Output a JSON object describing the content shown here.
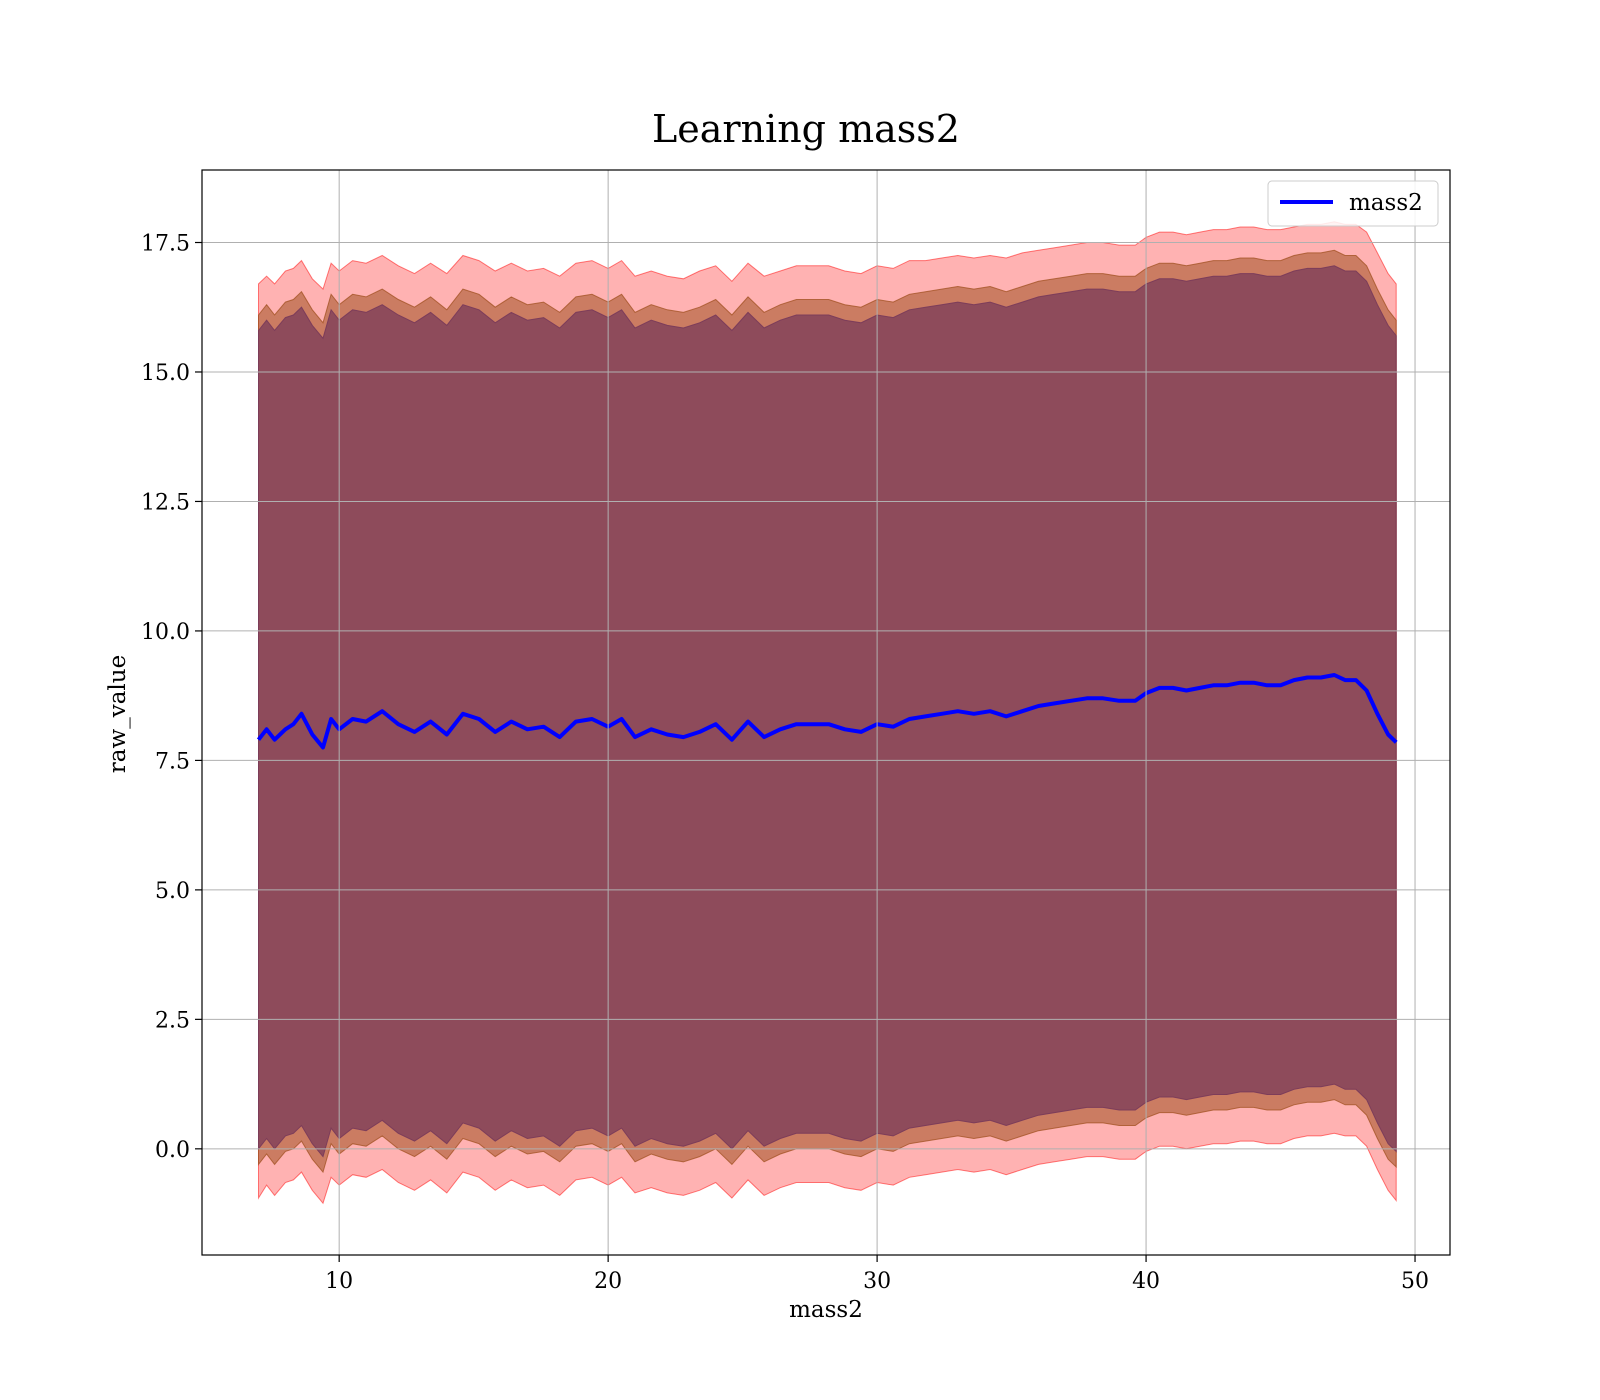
{
  "chart_data": {
    "type": "area",
    "title": "Learning mass2",
    "xlabel": "mass2",
    "ylabel": "raw_value",
    "xlim": [
      4.9,
      51.3
    ],
    "ylim": [
      -2.05,
      18.9
    ],
    "xticks": [
      10,
      20,
      30,
      40,
      50
    ],
    "xtick_labels": [
      "10",
      "20",
      "30",
      "40",
      "50"
    ],
    "yticks": [
      0.0,
      2.5,
      5.0,
      7.5,
      10.0,
      12.5,
      15.0,
      17.5
    ],
    "ytick_labels": [
      "0.0",
      "2.5",
      "5.0",
      "7.5",
      "10.0",
      "12.5",
      "15.0",
      "17.5"
    ],
    "grid": true,
    "legend_position": "top-right",
    "series": [
      {
        "name": "mass2",
        "color": "#0000ff",
        "x": [
          7.0,
          7.3,
          7.6,
          8.0,
          8.3,
          8.6,
          9.0,
          9.4,
          9.7,
          10.0,
          10.5,
          11.0,
          11.6,
          12.2,
          12.8,
          13.4,
          14.0,
          14.6,
          15.2,
          15.8,
          16.4,
          17.0,
          17.6,
          18.2,
          18.8,
          19.4,
          20.0,
          20.5,
          21.0,
          21.6,
          22.2,
          22.8,
          23.4,
          24.0,
          24.6,
          25.2,
          25.8,
          26.4,
          27.0,
          27.6,
          28.2,
          28.8,
          29.4,
          30.0,
          30.6,
          31.2,
          31.8,
          32.4,
          33.0,
          33.6,
          34.2,
          34.8,
          35.4,
          36.0,
          36.6,
          37.2,
          37.8,
          38.4,
          39.0,
          39.6,
          40.0,
          40.5,
          41.0,
          41.5,
          42.0,
          42.5,
          43.0,
          43.5,
          44.0,
          44.5,
          45.0,
          45.5,
          46.0,
          46.5,
          47.0,
          47.4,
          47.8,
          48.2,
          48.6,
          49.0,
          49.3
        ],
        "y": [
          7.9,
          8.1,
          7.9,
          8.1,
          8.2,
          8.4,
          8.0,
          7.75,
          8.3,
          8.1,
          8.3,
          8.25,
          8.45,
          8.2,
          8.05,
          8.25,
          8.0,
          8.4,
          8.3,
          8.05,
          8.25,
          8.1,
          8.15,
          7.95,
          8.25,
          8.3,
          8.15,
          8.3,
          7.95,
          8.1,
          8.0,
          7.95,
          8.05,
          8.2,
          7.9,
          8.25,
          7.95,
          8.1,
          8.2,
          8.2,
          8.2,
          8.1,
          8.05,
          8.2,
          8.15,
          8.3,
          8.35,
          8.4,
          8.45,
          8.4,
          8.45,
          8.35,
          8.45,
          8.55,
          8.6,
          8.65,
          8.7,
          8.7,
          8.65,
          8.65,
          8.8,
          8.9,
          8.9,
          8.85,
          8.9,
          8.95,
          8.95,
          9.0,
          9.0,
          8.95,
          8.95,
          9.05,
          9.1,
          9.1,
          9.15,
          9.05,
          9.05,
          8.85,
          8.4,
          8.0,
          7.85
        ]
      }
    ],
    "bands": [
      {
        "color": "#ff0000",
        "opacity": 0.3,
        "upper": [
          16.7,
          16.85,
          16.7,
          16.95,
          17.0,
          17.15,
          16.8,
          16.6,
          17.1,
          16.95,
          17.15,
          17.1,
          17.25,
          17.05,
          16.9,
          17.1,
          16.9,
          17.25,
          17.15,
          16.95,
          17.1,
          16.95,
          17.0,
          16.85,
          17.1,
          17.15,
          17.0,
          17.15,
          16.85,
          16.95,
          16.85,
          16.8,
          16.95,
          17.05,
          16.75,
          17.1,
          16.85,
          16.95,
          17.05,
          17.05,
          17.05,
          16.95,
          16.9,
          17.05,
          17.0,
          17.15,
          17.15,
          17.2,
          17.25,
          17.2,
          17.25,
          17.2,
          17.3,
          17.35,
          17.4,
          17.45,
          17.5,
          17.5,
          17.45,
          17.45,
          17.6,
          17.7,
          17.7,
          17.65,
          17.7,
          17.75,
          17.75,
          17.8,
          17.8,
          17.75,
          17.75,
          17.8,
          17.85,
          17.85,
          17.9,
          17.85,
          17.85,
          17.7,
          17.3,
          16.9,
          16.7
        ],
        "lower": [
          -0.95,
          -0.7,
          -0.9,
          -0.65,
          -0.6,
          -0.45,
          -0.8,
          -1.05,
          -0.55,
          -0.7,
          -0.5,
          -0.55,
          -0.4,
          -0.65,
          -0.8,
          -0.6,
          -0.85,
          -0.45,
          -0.55,
          -0.8,
          -0.6,
          -0.75,
          -0.7,
          -0.9,
          -0.6,
          -0.55,
          -0.7,
          -0.55,
          -0.85,
          -0.75,
          -0.85,
          -0.9,
          -0.8,
          -0.65,
          -0.95,
          -0.6,
          -0.9,
          -0.75,
          -0.65,
          -0.65,
          -0.65,
          -0.75,
          -0.8,
          -0.65,
          -0.7,
          -0.55,
          -0.5,
          -0.45,
          -0.4,
          -0.45,
          -0.4,
          -0.5,
          -0.4,
          -0.3,
          -0.25,
          -0.2,
          -0.15,
          -0.15,
          -0.2,
          -0.2,
          -0.05,
          0.05,
          0.05,
          0.0,
          0.05,
          0.1,
          0.1,
          0.15,
          0.15,
          0.1,
          0.1,
          0.2,
          0.25,
          0.25,
          0.3,
          0.25,
          0.25,
          0.05,
          -0.4,
          -0.8,
          -1.0
        ]
      },
      {
        "color": "#a05020",
        "opacity": 0.55,
        "upper": [
          16.1,
          16.3,
          16.1,
          16.35,
          16.4,
          16.55,
          16.2,
          15.95,
          16.5,
          16.3,
          16.5,
          16.45,
          16.6,
          16.4,
          16.25,
          16.45,
          16.2,
          16.6,
          16.5,
          16.25,
          16.45,
          16.3,
          16.35,
          16.15,
          16.45,
          16.5,
          16.35,
          16.5,
          16.15,
          16.3,
          16.2,
          16.15,
          16.25,
          16.4,
          16.1,
          16.45,
          16.15,
          16.3,
          16.4,
          16.4,
          16.4,
          16.3,
          16.25,
          16.4,
          16.35,
          16.5,
          16.55,
          16.6,
          16.65,
          16.6,
          16.65,
          16.55,
          16.65,
          16.75,
          16.8,
          16.85,
          16.9,
          16.9,
          16.85,
          16.85,
          17.0,
          17.1,
          17.1,
          17.05,
          17.1,
          17.15,
          17.15,
          17.2,
          17.2,
          17.15,
          17.15,
          17.25,
          17.3,
          17.3,
          17.35,
          17.25,
          17.25,
          17.05,
          16.6,
          16.2,
          16.0
        ],
        "lower": [
          -0.3,
          -0.1,
          -0.3,
          -0.05,
          0.0,
          0.15,
          -0.2,
          -0.45,
          0.1,
          -0.1,
          0.1,
          0.05,
          0.25,
          0.0,
          -0.15,
          0.05,
          -0.2,
          0.2,
          0.1,
          -0.15,
          0.05,
          -0.1,
          -0.05,
          -0.25,
          0.05,
          0.1,
          -0.05,
          0.1,
          -0.25,
          -0.1,
          -0.2,
          -0.25,
          -0.15,
          0.0,
          -0.3,
          0.05,
          -0.25,
          -0.1,
          0.0,
          0.0,
          0.0,
          -0.1,
          -0.15,
          0.0,
          -0.05,
          0.1,
          0.15,
          0.2,
          0.25,
          0.2,
          0.25,
          0.15,
          0.25,
          0.35,
          0.4,
          0.45,
          0.5,
          0.5,
          0.45,
          0.45,
          0.6,
          0.7,
          0.7,
          0.65,
          0.7,
          0.75,
          0.75,
          0.8,
          0.8,
          0.75,
          0.75,
          0.85,
          0.9,
          0.9,
          0.95,
          0.85,
          0.85,
          0.65,
          0.2,
          -0.2,
          -0.35
        ]
      },
      {
        "color": "#7a3b5a",
        "opacity": 0.75,
        "upper": [
          15.8,
          16.0,
          15.8,
          16.05,
          16.1,
          16.25,
          15.9,
          15.65,
          16.2,
          16.0,
          16.2,
          16.15,
          16.3,
          16.1,
          15.95,
          16.15,
          15.9,
          16.3,
          16.2,
          15.95,
          16.15,
          16.0,
          16.05,
          15.85,
          16.15,
          16.2,
          16.05,
          16.2,
          15.85,
          16.0,
          15.9,
          15.85,
          15.95,
          16.1,
          15.8,
          16.15,
          15.85,
          16.0,
          16.1,
          16.1,
          16.1,
          16.0,
          15.95,
          16.1,
          16.05,
          16.2,
          16.25,
          16.3,
          16.35,
          16.3,
          16.35,
          16.25,
          16.35,
          16.45,
          16.5,
          16.55,
          16.6,
          16.6,
          16.55,
          16.55,
          16.7,
          16.8,
          16.8,
          16.75,
          16.8,
          16.85,
          16.85,
          16.9,
          16.9,
          16.85,
          16.85,
          16.95,
          17.0,
          17.0,
          17.05,
          16.95,
          16.95,
          16.75,
          16.3,
          15.9,
          15.7
        ],
        "lower": [
          0.0,
          0.2,
          0.0,
          0.25,
          0.3,
          0.45,
          0.1,
          -0.15,
          0.4,
          0.2,
          0.4,
          0.35,
          0.55,
          0.3,
          0.15,
          0.35,
          0.1,
          0.5,
          0.4,
          0.15,
          0.35,
          0.2,
          0.25,
          0.05,
          0.35,
          0.4,
          0.25,
          0.4,
          0.05,
          0.2,
          0.1,
          0.05,
          0.15,
          0.3,
          0.0,
          0.35,
          0.05,
          0.2,
          0.3,
          0.3,
          0.3,
          0.2,
          0.15,
          0.3,
          0.25,
          0.4,
          0.45,
          0.5,
          0.55,
          0.5,
          0.55,
          0.45,
          0.55,
          0.65,
          0.7,
          0.75,
          0.8,
          0.8,
          0.75,
          0.75,
          0.9,
          1.0,
          1.0,
          0.95,
          1.0,
          1.05,
          1.05,
          1.1,
          1.1,
          1.05,
          1.05,
          1.15,
          1.2,
          1.2,
          1.25,
          1.15,
          1.15,
          0.95,
          0.5,
          0.1,
          -0.05
        ]
      }
    ]
  }
}
